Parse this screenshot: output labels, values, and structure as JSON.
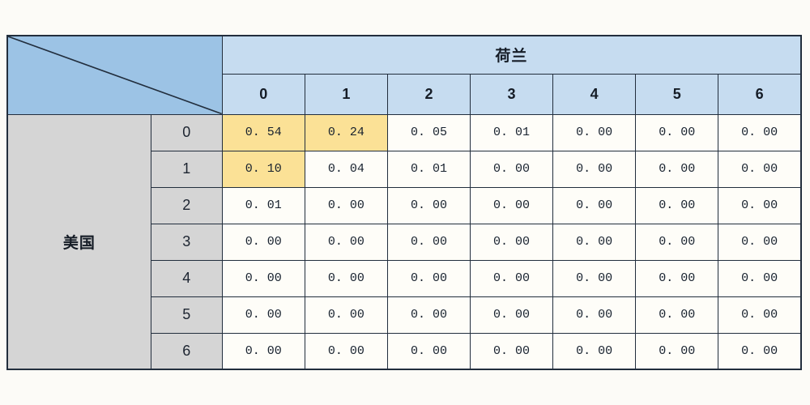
{
  "table": {
    "col_group_label": "荷兰",
    "row_group_label": "美国",
    "col_headers": [
      "0",
      "1",
      "2",
      "3",
      "4",
      "5",
      "6"
    ],
    "row_headers": [
      "0",
      "1",
      "2",
      "3",
      "4",
      "5",
      "6"
    ],
    "highlighted_cells": [
      [
        0,
        0
      ],
      [
        0,
        1
      ],
      [
        1,
        0
      ]
    ]
  },
  "chart_data": {
    "type": "table",
    "title": "",
    "col_group": "荷兰",
    "row_group": "美国",
    "columns": [
      0,
      1,
      2,
      3,
      4,
      5,
      6
    ],
    "rows": [
      0,
      1,
      2,
      3,
      4,
      5,
      6
    ],
    "matrix": [
      [
        0.54,
        0.24,
        0.05,
        0.01,
        0.0,
        0.0,
        0.0
      ],
      [
        0.1,
        0.04,
        0.01,
        0.0,
        0.0,
        0.0,
        0.0
      ],
      [
        0.01,
        0.0,
        0.0,
        0.0,
        0.0,
        0.0,
        0.0
      ],
      [
        0.0,
        0.0,
        0.0,
        0.0,
        0.0,
        0.0,
        0.0
      ],
      [
        0.0,
        0.0,
        0.0,
        0.0,
        0.0,
        0.0,
        0.0
      ],
      [
        0.0,
        0.0,
        0.0,
        0.0,
        0.0,
        0.0,
        0.0
      ],
      [
        0.0,
        0.0,
        0.0,
        0.0,
        0.0,
        0.0,
        0.0
      ]
    ],
    "highlighted_values": [
      0.54,
      0.24,
      0.1
    ],
    "value_format": "0.00",
    "layout_hints": {
      "grid": true,
      "legend": "none"
    }
  },
  "colors": {
    "border": "#222e3d",
    "header_blue": "#c6dcf0",
    "corner_blue": "#9cc3e5",
    "gray": "#d5d5d5",
    "highlight_yellow": "#fbe196",
    "cell_bg": "#fefdf8",
    "page_bg": "#fcfbf7"
  }
}
